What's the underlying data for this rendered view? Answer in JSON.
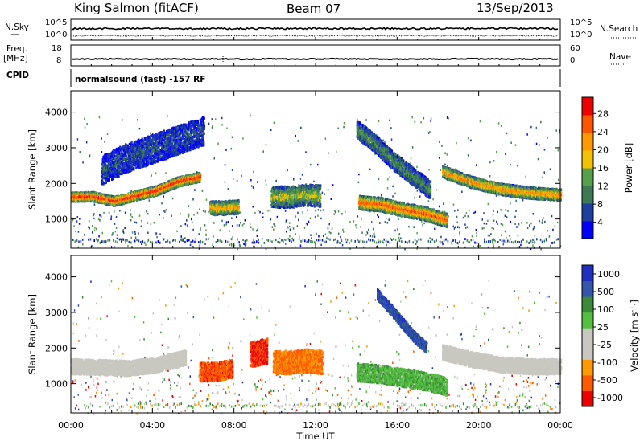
{
  "header": {
    "station": "King Salmon (fitACF)",
    "beam": "Beam 07",
    "date": "13/Sep/2013"
  },
  "top_panels": {
    "nsky_label": "N.Sky",
    "nsearch_label": "N.Search",
    "freq_label_line1": "Freq.",
    "freq_label_line2": "[MHz]",
    "nave_label": "Nave",
    "cpid_label": "CPID",
    "cpid_text": "normalsound (fast) -157 RF",
    "noise_left_ticks": [
      "10^5",
      "10^0"
    ],
    "noise_right_ticks": [
      "10^5",
      "10^0"
    ],
    "freq_left_ticks": [
      "18",
      "8"
    ],
    "freq_right_ticks": [
      "60",
      "0"
    ]
  },
  "colors": {
    "power_scale": [
      "#0000ff",
      "#1f3fa0",
      "#3c7a55",
      "#56a04a",
      "#f2c200",
      "#ff9900",
      "#ff5500",
      "#ee0000"
    ],
    "velocity_scale": [
      "#ee0000",
      "#ff5a00",
      "#ff9900",
      "#c8c8c0",
      "#c8c8c0",
      "#55c040",
      "#3a8a3a",
      "#3355aa",
      "#1f2fbf"
    ]
  },
  "chart_data": [
    {
      "type": "heatmap",
      "name_panel": "power",
      "xlabel": "Time UT",
      "ylabel": "Slant Range [km]",
      "xlim": [
        0,
        24
      ],
      "ylim": [
        180,
        4600
      ],
      "x_ticks": [
        "00:00",
        "04:00",
        "08:00",
        "12:00",
        "16:00",
        "20:00",
        "00:00"
      ],
      "y_ticks": [
        1000,
        2000,
        3000,
        4000
      ],
      "colorbar_label": "Power [dB]",
      "colorbar_ticks": [
        "28",
        "24",
        "20",
        "16",
        "12",
        "8",
        "4"
      ],
      "bands": [
        {
          "t": [
            0.0,
            6.3
          ],
          "range_start": [
            1520,
            1530,
            1400,
            1550,
            1700,
            1950,
            2080
          ],
          "width": 260,
          "level": 0.85
        },
        {
          "t": [
            1.5,
            6.5
          ],
          "range_start": [
            2000,
            2300,
            2500,
            2700,
            2900,
            3100
          ],
          "width": 800,
          "level": 0.15
        },
        {
          "t": [
            6.8,
            8.2
          ],
          "range_start": [
            1150,
            1150,
            1180
          ],
          "width": 380,
          "level": 0.6
        },
        {
          "t": [
            9.8,
            12.2
          ],
          "range_start": [
            1350,
            1350,
            1400,
            1380
          ],
          "width": 600,
          "level": 0.45
        },
        {
          "t": [
            14.1,
            18.4
          ],
          "range_start": [
            1300,
            1250,
            1100,
            1000,
            800
          ],
          "width": 380,
          "level": 0.75
        },
        {
          "t": [
            14.0,
            17.6
          ],
          "range_start": [
            3300,
            2900,
            2400,
            2000,
            1600
          ],
          "width": 500,
          "level": 0.3
        },
        {
          "t": [
            18.2,
            24.0
          ],
          "range_start": [
            2200,
            1900,
            1700,
            1600,
            1550
          ],
          "width": 320,
          "level": 0.65
        }
      ]
    },
    {
      "type": "heatmap",
      "name_panel": "velocity",
      "xlabel": "Time UT",
      "ylabel": "Slant Range [km]",
      "xlim": [
        0,
        24
      ],
      "ylim": [
        180,
        4600
      ],
      "x_ticks": [
        "00:00",
        "04:00",
        "08:00",
        "12:00",
        "16:00",
        "20:00",
        "00:00"
      ],
      "y_ticks": [
        1000,
        2000,
        3000,
        4000
      ],
      "colorbar_label": "Velocity [m s^-1]",
      "colorbar_ticks": [
        "1000",
        "500",
        "100",
        "25",
        "-25",
        "-100",
        "-500",
        "-1000"
      ],
      "bands": [
        {
          "t": [
            0.0,
            5.6
          ],
          "range_start": [
            1300,
            1280,
            1250,
            1350,
            1550
          ],
          "width": 420,
          "level": 0.45
        },
        {
          "t": [
            6.3,
            7.9
          ],
          "range_start": [
            1100,
            1100,
            1200
          ],
          "width": 520,
          "level": 0.12
        },
        {
          "t": [
            8.8,
            9.6
          ],
          "range_start": [
            1500,
            1600
          ],
          "width": 700,
          "level": 0.05
        },
        {
          "t": [
            9.9,
            12.3
          ],
          "range_start": [
            1300,
            1300,
            1350,
            1300
          ],
          "width": 650,
          "level": 0.18
        },
        {
          "t": [
            14.0,
            18.4
          ],
          "range_start": [
            1100,
            1050,
            950,
            850,
            700
          ],
          "width": 500,
          "level": 0.65
        },
        {
          "t": [
            15.0,
            17.4
          ],
          "range_start": [
            3400,
            3000,
            2600,
            2200,
            1900
          ],
          "width": 300,
          "level": 0.9
        },
        {
          "t": [
            18.2,
            24.0
          ],
          "range_start": [
            1700,
            1500,
            1350,
            1300,
            1300
          ],
          "width": 420,
          "level": 0.45
        }
      ]
    }
  ]
}
